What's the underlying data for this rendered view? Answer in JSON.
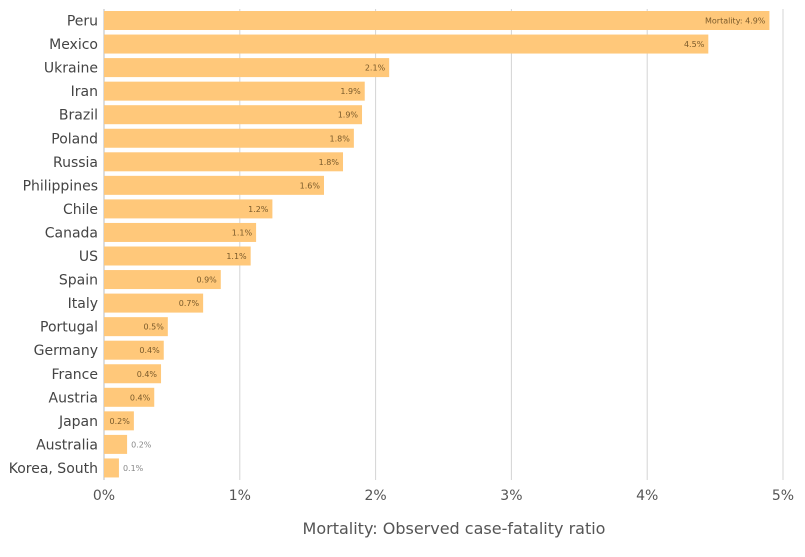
{
  "chart_data": {
    "type": "bar",
    "orientation": "horizontal",
    "title": "",
    "xlabel": "Mortality: Observed case-fatality ratio",
    "ylabel": "",
    "xlim": [
      0,
      5
    ],
    "x_ticks": [
      {
        "value": 0,
        "label": "0%"
      },
      {
        "value": 1,
        "label": "1%"
      },
      {
        "value": 2,
        "label": "2%"
      },
      {
        "value": 3,
        "label": "3%"
      },
      {
        "value": 4,
        "label": "4%"
      },
      {
        "value": 5,
        "label": "5%"
      }
    ],
    "grid": "vertical",
    "legend": "none",
    "bar_color": "#FFC87A",
    "categories": [
      "Peru",
      "Mexico",
      "Ukraine",
      "Iran",
      "Brazil",
      "Poland",
      "Russia",
      "Philippines",
      "Chile",
      "Canada",
      "US",
      "Spain",
      "Italy",
      "Portugal",
      "Germany",
      "France",
      "Austria",
      "Japan",
      "Australia",
      "Korea, South"
    ],
    "values": [
      4.9,
      4.45,
      2.1,
      1.92,
      1.9,
      1.84,
      1.76,
      1.62,
      1.24,
      1.12,
      1.08,
      0.86,
      0.73,
      0.47,
      0.44,
      0.42,
      0.37,
      0.22,
      0.17,
      0.11
    ],
    "data_labels": [
      "Mortality: 4.9%",
      "4.5%",
      "2.1%",
      "1.9%",
      "1.9%",
      "1.8%",
      "1.8%",
      "1.6%",
      "1.2%",
      "1.1%",
      "1.1%",
      "0.9%",
      "0.7%",
      "0.5%",
      "0.4%",
      "0.4%",
      "0.4%",
      "0.2%",
      "0.2%",
      "0.1%"
    ]
  }
}
